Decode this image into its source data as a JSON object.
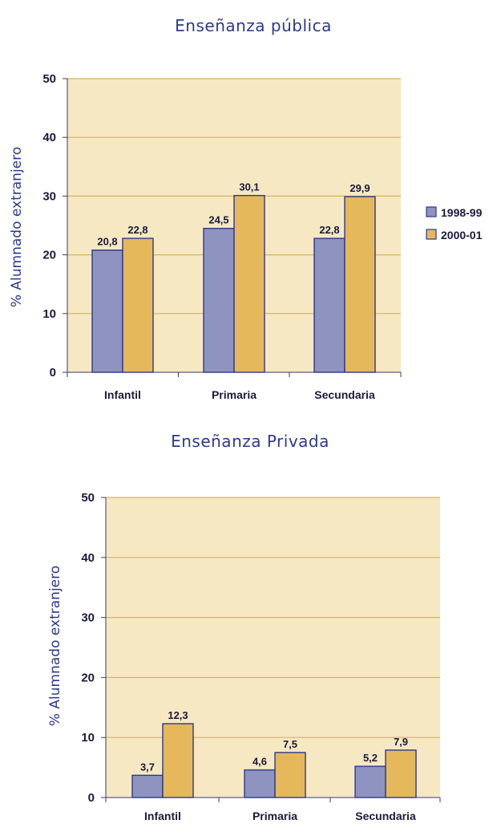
{
  "colors": {
    "series_1998": "#8f93bf",
    "series_2000": "#e6b85c",
    "bar_stroke": "#2b3990",
    "plot_bg": "#f6e8c3",
    "grid": "#d7b460",
    "axis": "#3a3a6a",
    "title": "#2c3a8c"
  },
  "legend": {
    "items": [
      {
        "label": "1998-99",
        "color": "#8f93bf"
      },
      {
        "label": "2000-01",
        "color": "#e6b85c"
      }
    ]
  },
  "chart_data": [
    {
      "type": "bar",
      "title": "Enseñanza pública",
      "ylabel": "% Alumnado extranjero",
      "ylim": [
        0,
        50
      ],
      "yticks": [
        0,
        10,
        20,
        30,
        40,
        50
      ],
      "categories": [
        "Infantil",
        "Primaria",
        "Secundaria"
      ],
      "series": [
        {
          "name": "1998-99",
          "values": [
            20.8,
            24.5,
            22.8
          ],
          "labels": [
            "20,8",
            "24,5",
            "22,8"
          ]
        },
        {
          "name": "2000-01",
          "values": [
            22.8,
            30.1,
            29.9
          ],
          "labels": [
            "22,8",
            "30,1",
            "29,9"
          ]
        }
      ],
      "grid": true,
      "legend_position": "right"
    },
    {
      "type": "bar",
      "title": "Enseñanza Privada",
      "ylabel": "% Alumnado extranjero",
      "ylim": [
        0,
        50
      ],
      "yticks": [
        0,
        10,
        20,
        30,
        40,
        50
      ],
      "categories": [
        "Infantil",
        "Primaria",
        "Secundaria"
      ],
      "series": [
        {
          "name": "1998-99",
          "values": [
            3.7,
            4.6,
            5.2
          ],
          "labels": [
            "3,7",
            "4,6",
            "5,2"
          ]
        },
        {
          "name": "2000-01",
          "values": [
            12.3,
            7.5,
            7.9
          ],
          "labels": [
            "12,3",
            "7,5",
            "7,9"
          ]
        }
      ],
      "grid": true
    }
  ]
}
